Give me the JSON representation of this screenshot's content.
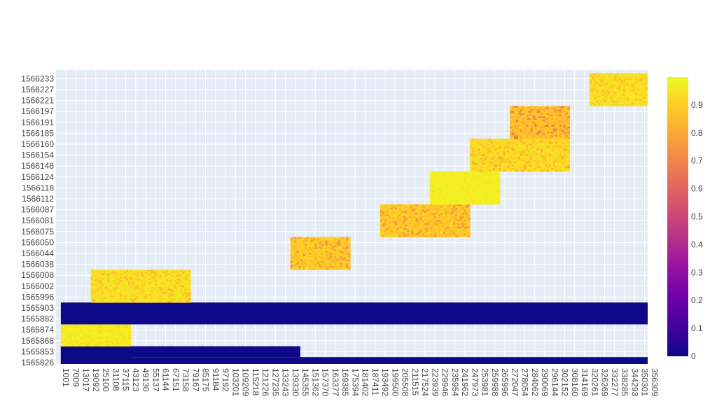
{
  "chart_data": {
    "type": "heatmap",
    "title": "",
    "xlabel": "",
    "ylabel": "",
    "x_ticks": [
      "1001",
      "7009",
      "13017",
      "19092",
      "25100",
      "31108",
      "37115",
      "43123",
      "49130",
      "55137",
      "61144",
      "67151",
      "73158",
      "79167",
      "85175",
      "91184",
      "97192",
      "103201",
      "109209",
      "115218",
      "121226",
      "127235",
      "133243",
      "139330",
      "145355",
      "151362",
      "157370",
      "163377",
      "169385",
      "175394",
      "181402",
      "187411",
      "193492",
      "199500",
      "205508",
      "211515",
      "217524",
      "223939",
      "229946",
      "235954",
      "241962",
      "247973",
      "253981",
      "259988",
      "265996",
      "272047",
      "278054",
      "284062",
      "290069",
      "296144",
      "302152",
      "308160",
      "314169",
      "320261",
      "326269",
      "332277",
      "338285",
      "344293",
      "350301",
      "356309"
    ],
    "y_ticks": [
      "1565826",
      "1565853",
      "1565868",
      "1565874",
      "1565882",
      "1565903",
      "1565996",
      "1566002",
      "1566008",
      "1566038",
      "1566044",
      "1566050",
      "1566075",
      "1566081",
      "1566087",
      "1566112",
      "1566118",
      "1566124",
      "1566148",
      "1566154",
      "1566160",
      "1566185",
      "1566191",
      "1566197",
      "1566221",
      "1566227",
      "1566233"
    ],
    "colorbar": {
      "min": 0,
      "max": 1,
      "ticks": [
        0,
        0.1,
        0.2,
        0.3,
        0.4,
        0.5,
        0.6,
        0.7,
        0.8,
        0.9
      ],
      "tick_labels": [
        "0",
        "0.1",
        "0.2",
        "0.3",
        "0.4",
        "0.5",
        "0.6",
        "0.7",
        "0.8",
        "0.9"
      ],
      "colorscale": [
        "#0d0887",
        "#46039f",
        "#7201a8",
        "#9c179e",
        "#bd3786",
        "#d8576b",
        "#ed7953",
        "#fb9f3a",
        "#fdca26",
        "#f0f921"
      ]
    },
    "blocks": [
      {
        "x_start": "1001",
        "x_end": "356309",
        "y_start": "1565826",
        "y_end": "1565826",
        "value": 0.0,
        "texture": 0
      },
      {
        "x_start": "1001",
        "x_end": "37115",
        "y_start": "1565826",
        "y_end": "1565853",
        "value": 0.0,
        "texture": 0
      },
      {
        "x_start": "1001",
        "x_end": "139330",
        "y_start": "1565853",
        "y_end": "1565853",
        "value": 0.0,
        "texture": 0
      },
      {
        "x_start": "1001",
        "x_end": "37115",
        "y_start": "1565868",
        "y_end": "1565874",
        "value": 0.98,
        "texture": 0.03
      },
      {
        "x_start": "1001",
        "x_end": "356309",
        "y_start": "1565882",
        "y_end": "1565903",
        "value": 0.0,
        "texture": 0
      },
      {
        "x_start": "19092",
        "x_end": "73158",
        "y_start": "1565996",
        "y_end": "1566008",
        "value": 0.96,
        "texture": 0.06
      },
      {
        "x_start": "139330",
        "x_end": "169385",
        "y_start": "1566038",
        "y_end": "1566050",
        "value": 0.92,
        "texture": 0.1
      },
      {
        "x_start": "193492",
        "x_end": "241962",
        "y_start": "1566075",
        "y_end": "1566087",
        "value": 0.92,
        "texture": 0.1
      },
      {
        "x_start": "223939",
        "x_end": "259988",
        "y_start": "1566112",
        "y_end": "1566124",
        "value": 0.985,
        "texture": 0.02
      },
      {
        "x_start": "247973",
        "x_end": "302152",
        "y_start": "1566148",
        "y_end": "1566160",
        "value": 0.95,
        "texture": 0.07
      },
      {
        "x_start": "272047",
        "x_end": "302152",
        "y_start": "1566185",
        "y_end": "1566197",
        "value": 0.9,
        "texture": 0.12
      },
      {
        "x_start": "320261",
        "x_end": "356309",
        "y_start": "1566221",
        "y_end": "1566233",
        "value": 0.96,
        "texture": 0.06
      }
    ]
  }
}
